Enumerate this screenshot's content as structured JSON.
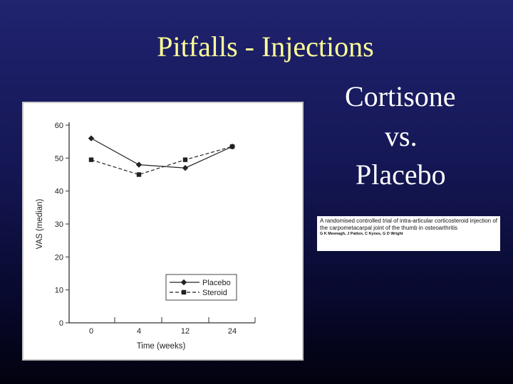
{
  "slide": {
    "title": "Pitfalls - Injections",
    "side_text": [
      "Cortisone",
      "vs.",
      "Placebo"
    ]
  },
  "citation": {
    "title": "A randomised controlled trial of intra-articular corticosteroid injection of the carpometacarpal joint of the thumb in osteoarthritis",
    "authors": "G K Meenagh, J Patton, C Kynes, G D Wright"
  },
  "colors": {
    "title": "#ffff99",
    "side_text": "#ffffff",
    "series": "#222222"
  },
  "chart_data": {
    "type": "line",
    "title": "",
    "xlabel": "Time (weeks)",
    "ylabel": "VAS (median)",
    "categories": [
      "0",
      "4",
      "12",
      "24"
    ],
    "ylim": [
      0,
      60
    ],
    "yticks": [
      "0",
      "10",
      "20",
      "30",
      "40",
      "50",
      "60"
    ],
    "grid": false,
    "legend_position": "bottom-right",
    "series": [
      {
        "name": "Placebo",
        "values": [
          56,
          48,
          47,
          53.5
        ],
        "marker": "diamond",
        "line": "solid"
      },
      {
        "name": "Steroid",
        "values": [
          49.5,
          45,
          49.5,
          53.5
        ],
        "marker": "square",
        "line": "dashed"
      }
    ]
  }
}
